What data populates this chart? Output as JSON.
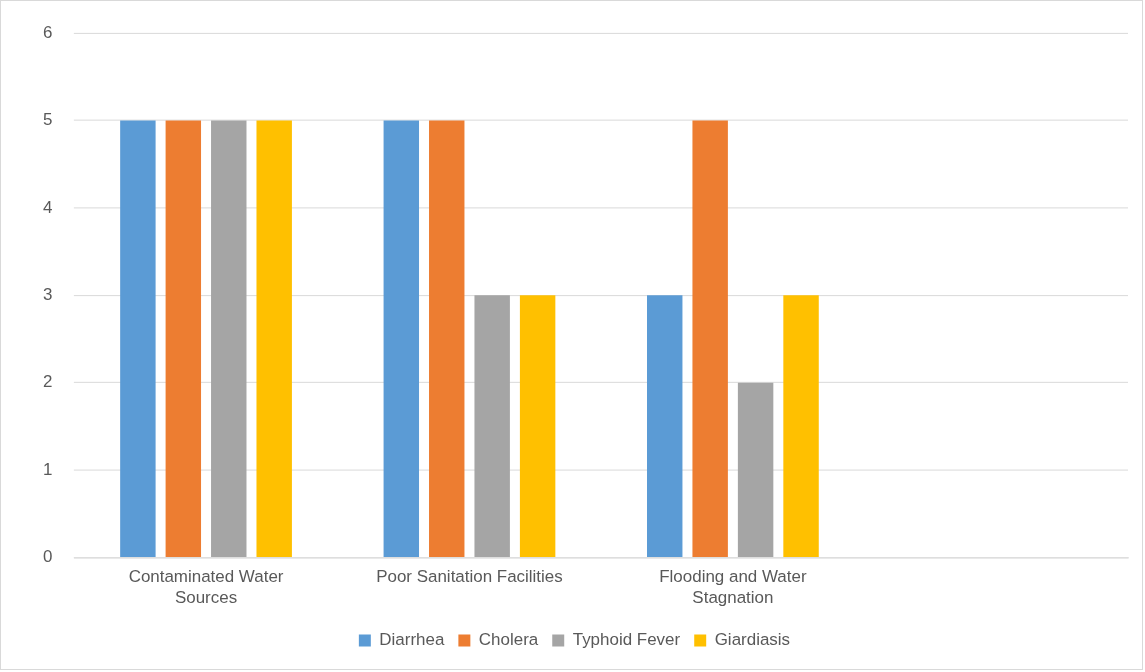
{
  "chart_data": {
    "type": "bar",
    "categories": [
      "Contaminated Water Sources",
      "Poor Sanitation Facilities",
      "Flooding and Water Stagnation",
      null
    ],
    "series": [
      {
        "name": "Diarrhea",
        "color": "#5b9bd5",
        "values": [
          5,
          5,
          3,
          null
        ]
      },
      {
        "name": "Cholera",
        "color": "#ed7d31",
        "values": [
          5,
          5,
          5,
          null
        ]
      },
      {
        "name": "Typhoid Fever",
        "color": "#a5a5a5",
        "values": [
          5,
          3,
          2,
          null
        ]
      },
      {
        "name": "Giardiasis",
        "color": "#ffc000",
        "values": [
          5,
          3,
          3,
          null
        ]
      }
    ],
    "ylim": [
      0,
      6
    ],
    "yticks": [
      0,
      1,
      2,
      3,
      4,
      5,
      6
    ],
    "grid": "y",
    "legend": "bottom"
  }
}
